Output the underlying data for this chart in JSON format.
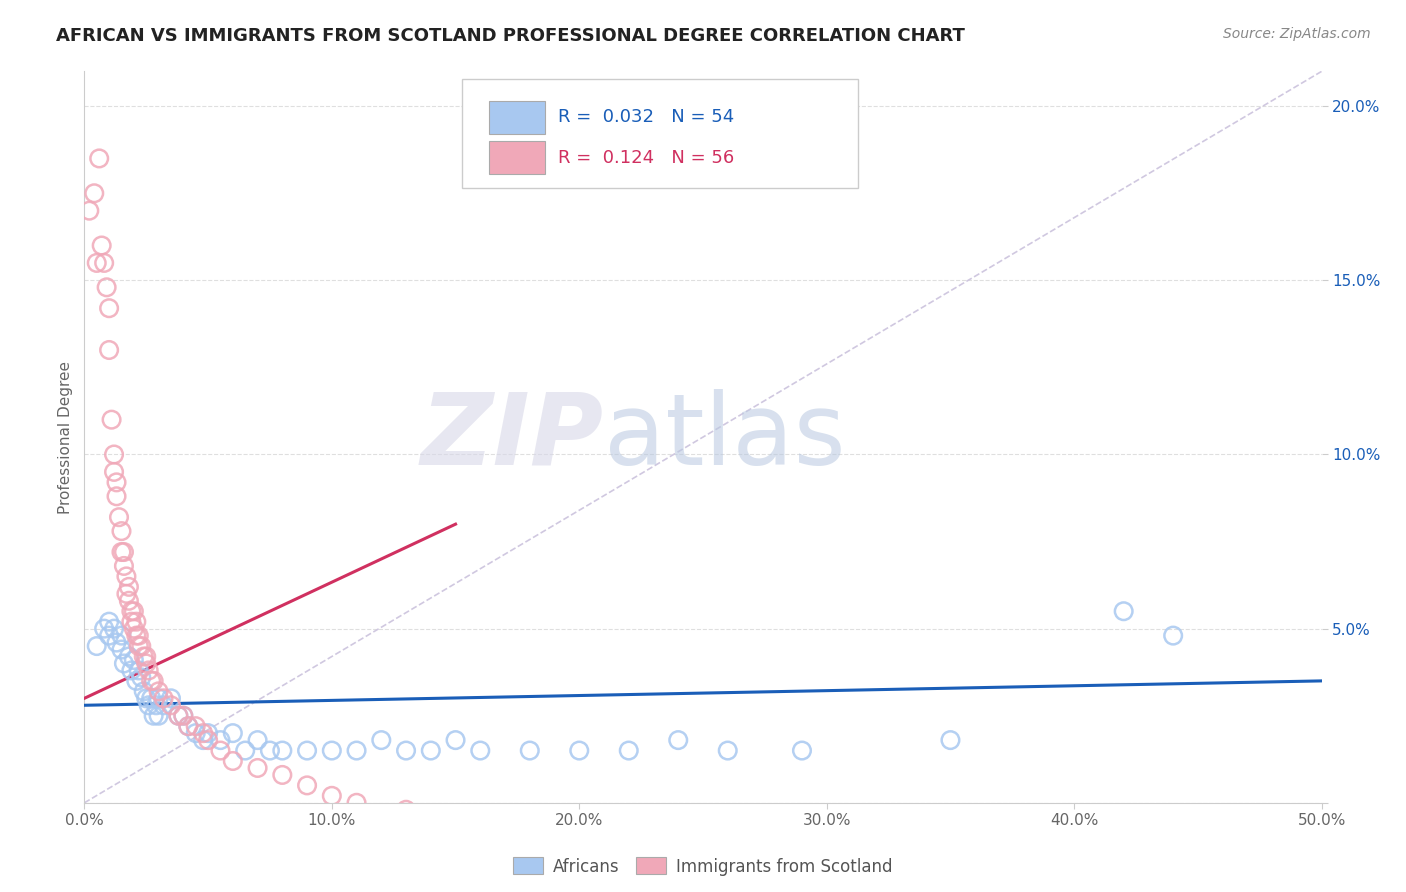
{
  "title": "AFRICAN VS IMMIGRANTS FROM SCOTLAND PROFESSIONAL DEGREE CORRELATION CHART",
  "source": "Source: ZipAtlas.com",
  "ylabel": "Professional Degree",
  "xlim": [
    0.0,
    0.5
  ],
  "ylim": [
    0.0,
    0.21
  ],
  "xticks": [
    0.0,
    0.1,
    0.2,
    0.3,
    0.4,
    0.5
  ],
  "xticklabels": [
    "0.0%",
    "10.0%",
    "20.0%",
    "30.0%",
    "40.0%",
    "50.0%"
  ],
  "yticks": [
    0.0,
    0.05,
    0.1,
    0.15,
    0.2
  ],
  "yticklabels": [
    "",
    "5.0%",
    "10.0%",
    "15.0%",
    "20.0%"
  ],
  "legend_r_blue": "0.032",
  "legend_n_blue": "54",
  "legend_r_pink": "0.124",
  "legend_n_pink": "56",
  "blue_color": "#a8c8f0",
  "pink_color": "#f0a8b8",
  "blue_line_color": "#1a5eb8",
  "pink_line_color": "#d03060",
  "diagonal_color": "#d0c8e0",
  "watermark_zip": "ZIP",
  "watermark_atlas": "atlas",
  "background_color": "#ffffff",
  "blue_scatter_x": [
    0.005,
    0.008,
    0.01,
    0.01,
    0.012,
    0.013,
    0.015,
    0.015,
    0.016,
    0.018,
    0.019,
    0.02,
    0.021,
    0.022,
    0.023,
    0.024,
    0.025,
    0.026,
    0.027,
    0.028,
    0.029,
    0.03,
    0.03,
    0.032,
    0.035,
    0.038,
    0.04,
    0.042,
    0.045,
    0.048,
    0.05,
    0.055,
    0.06,
    0.065,
    0.07,
    0.075,
    0.08,
    0.09,
    0.1,
    0.11,
    0.12,
    0.13,
    0.14,
    0.15,
    0.16,
    0.18,
    0.2,
    0.22,
    0.24,
    0.26,
    0.29,
    0.35,
    0.42,
    0.44
  ],
  "blue_scatter_y": [
    0.045,
    0.05,
    0.048,
    0.052,
    0.05,
    0.046,
    0.044,
    0.048,
    0.04,
    0.042,
    0.038,
    0.041,
    0.035,
    0.038,
    0.036,
    0.032,
    0.03,
    0.028,
    0.03,
    0.025,
    0.028,
    0.03,
    0.025,
    0.028,
    0.03,
    0.025,
    0.025,
    0.022,
    0.02,
    0.018,
    0.02,
    0.018,
    0.02,
    0.015,
    0.018,
    0.015,
    0.015,
    0.015,
    0.015,
    0.015,
    0.018,
    0.015,
    0.015,
    0.018,
    0.015,
    0.015,
    0.015,
    0.015,
    0.018,
    0.015,
    0.015,
    0.018,
    0.055,
    0.048
  ],
  "pink_scatter_x": [
    0.002,
    0.004,
    0.005,
    0.006,
    0.007,
    0.008,
    0.009,
    0.01,
    0.01,
    0.011,
    0.012,
    0.012,
    0.013,
    0.013,
    0.014,
    0.015,
    0.015,
    0.016,
    0.016,
    0.017,
    0.017,
    0.018,
    0.018,
    0.019,
    0.019,
    0.02,
    0.02,
    0.021,
    0.021,
    0.022,
    0.022,
    0.023,
    0.024,
    0.025,
    0.025,
    0.026,
    0.027,
    0.028,
    0.03,
    0.032,
    0.035,
    0.038,
    0.04,
    0.042,
    0.045,
    0.048,
    0.05,
    0.055,
    0.06,
    0.07,
    0.08,
    0.09,
    0.1,
    0.11,
    0.13,
    0.15
  ],
  "pink_scatter_y": [
    0.17,
    0.175,
    0.155,
    0.185,
    0.16,
    0.155,
    0.148,
    0.142,
    0.13,
    0.11,
    0.095,
    0.1,
    0.088,
    0.092,
    0.082,
    0.078,
    0.072,
    0.068,
    0.072,
    0.065,
    0.06,
    0.062,
    0.058,
    0.055,
    0.052,
    0.055,
    0.05,
    0.048,
    0.052,
    0.048,
    0.045,
    0.045,
    0.042,
    0.04,
    0.042,
    0.038,
    0.035,
    0.035,
    0.032,
    0.03,
    0.028,
    0.025,
    0.025,
    0.022,
    0.022,
    0.02,
    0.018,
    0.015,
    0.012,
    0.01,
    0.008,
    0.005,
    0.002,
    0.0,
    -0.002,
    -0.003
  ],
  "blue_trend_x": [
    0.0,
    0.5
  ],
  "blue_trend_y": [
    0.028,
    0.035
  ],
  "pink_trend_x": [
    0.0,
    0.15
  ],
  "pink_trend_y": [
    0.03,
    0.08
  ]
}
